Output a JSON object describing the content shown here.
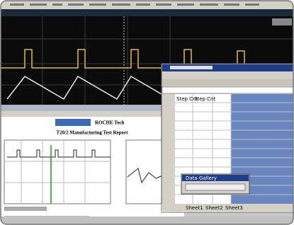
{
  "report": {
    "brand": "ROCHE Tech",
    "title": "T20/2 Manufacturing Test Report"
  },
  "spreadsheet": {
    "columns": [
      "Step Cnt",
      "Step Cnt"
    ],
    "tabs": [
      "Sheet1",
      "Sheet2",
      "Sheet3"
    ]
  },
  "popup": {
    "title": "Data Gallery"
  }
}
